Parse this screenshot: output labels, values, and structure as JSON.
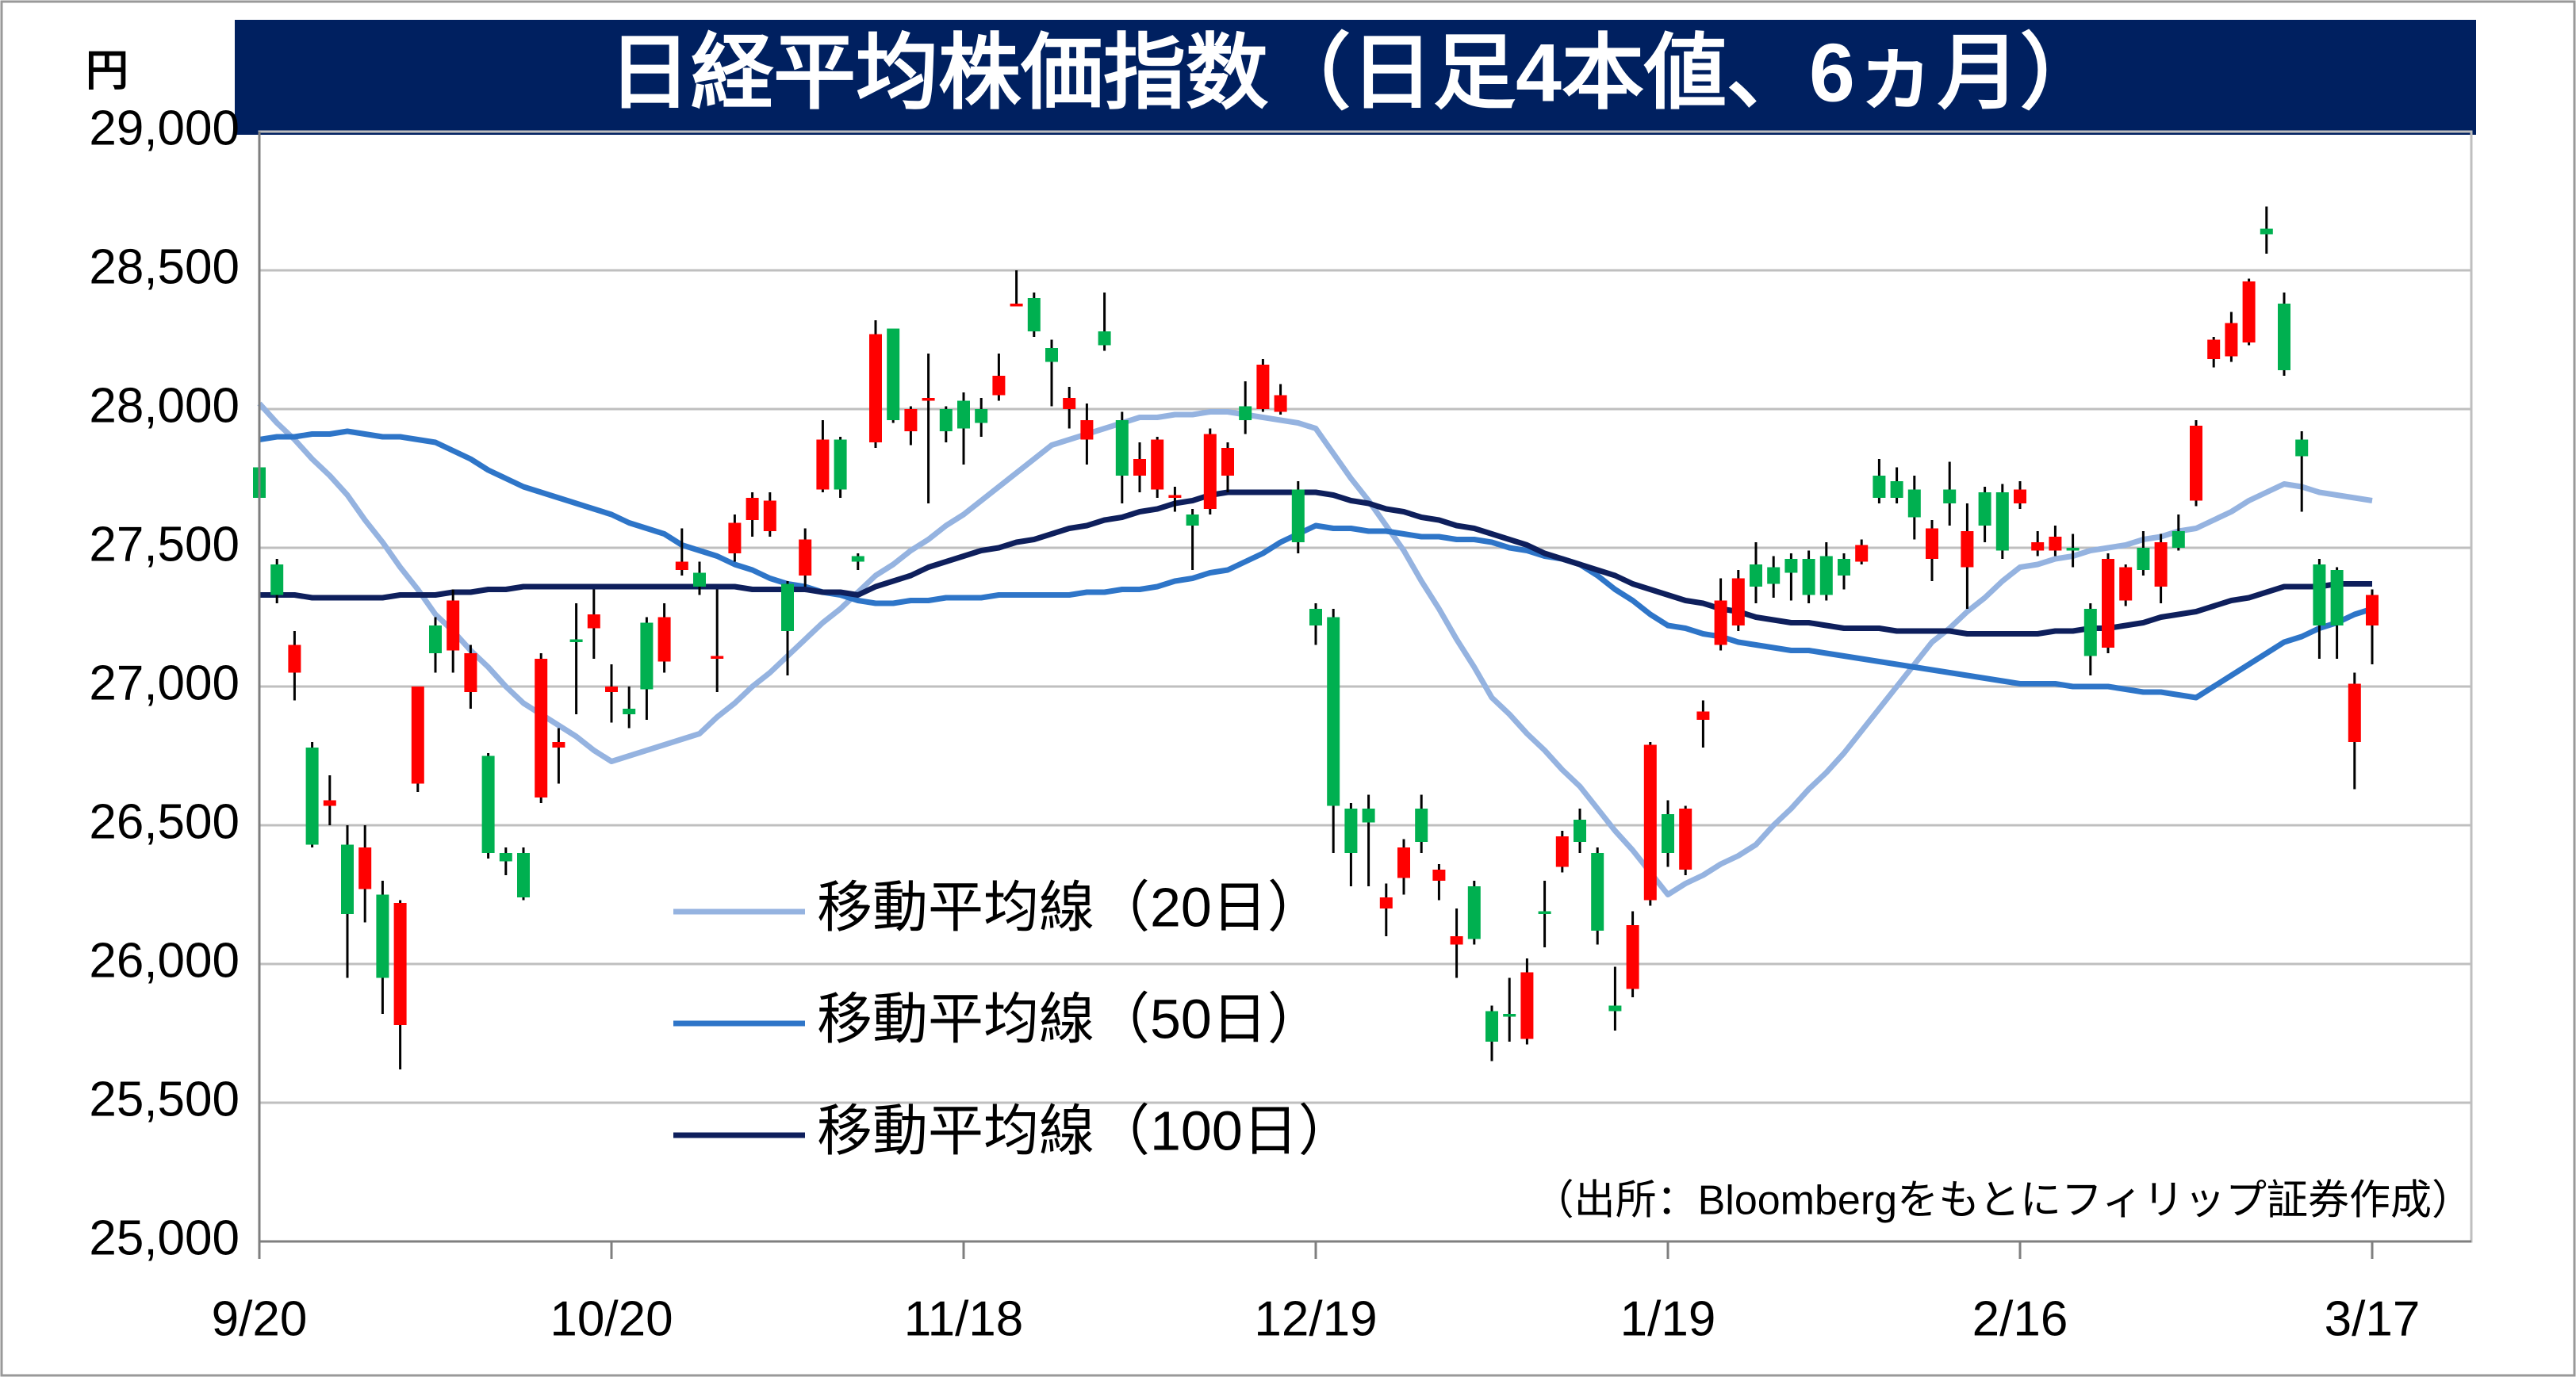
{
  "chart_data": {
    "type": "candlestick",
    "title": "日経平均株価指数（日足4本値、6ヵ月）",
    "y_unit": "円",
    "source": "（出所：Bloombergをもとにフィリップ証券作成）",
    "ylim": [
      25000,
      29000
    ],
    "yticks": [
      {
        "value": 25000,
        "label": "25,000"
      },
      {
        "value": 25500,
        "label": "25,500"
      },
      {
        "value": 26000,
        "label": "26,000"
      },
      {
        "value": 26500,
        "label": "26,500"
      },
      {
        "value": 27000,
        "label": "27,000"
      },
      {
        "value": 27500,
        "label": "27,500"
      },
      {
        "value": 28000,
        "label": "28,000"
      },
      {
        "value": 28500,
        "label": "28,500"
      },
      {
        "value": 29000,
        "label": "29,000"
      }
    ],
    "grid": true,
    "up_color": "#ff0000",
    "down_color": "#00b050",
    "categories": [
      "9/20",
      null,
      null,
      null,
      null,
      null,
      null,
      null,
      null,
      null,
      null,
      null,
      null,
      null,
      null,
      null,
      null,
      null,
      null,
      null,
      "10/20",
      null,
      null,
      null,
      null,
      null,
      null,
      null,
      null,
      null,
      null,
      null,
      null,
      null,
      null,
      null,
      null,
      null,
      null,
      null,
      "11/18",
      null,
      null,
      null,
      null,
      null,
      null,
      null,
      null,
      null,
      null,
      null,
      null,
      null,
      null,
      null,
      null,
      null,
      null,
      null,
      "12/19",
      null,
      null,
      null,
      null,
      null,
      null,
      null,
      null,
      null,
      null,
      null,
      null,
      null,
      null,
      null,
      null,
      null,
      null,
      null,
      "1/19",
      null,
      null,
      null,
      null,
      null,
      null,
      null,
      null,
      null,
      null,
      null,
      null,
      null,
      null,
      null,
      null,
      null,
      null,
      null,
      "2/16",
      null,
      null,
      null,
      null,
      null,
      null,
      null,
      null,
      null,
      null,
      null,
      null,
      null,
      null,
      null,
      null,
      null,
      null,
      null,
      "3/17"
    ],
    "open": [
      27790,
      27440,
      27050,
      26780,
      26570,
      26430,
      26270,
      26250,
      25780,
      26650,
      27220,
      27130,
      26980,
      26750,
      26400,
      26400,
      26600,
      26780,
      27170,
      27210,
      26980,
      26920,
      27230,
      27090,
      27420,
      27410,
      27100,
      27480,
      27600,
      27560,
      27370,
      27400,
      27710,
      27890,
      27470,
      27880,
      28290,
      27920,
      28030,
      28000,
      28030,
      28000,
      28050,
      28370,
      28400,
      28220,
      28000,
      27890,
      28280,
      27960,
      27760,
      27710,
      27680,
      27620,
      27640,
      27760,
      28010,
      28000,
      27990,
      27710,
      27280,
      27250,
      26560,
      26560,
      26200,
      26310,
      26560,
      26300,
      26070,
      26280,
      25830,
      25820,
      25730,
      26190,
      26350,
      26520,
      26400,
      25850,
      25910,
      26230,
      26540,
      26340,
      26880,
      27150,
      27220,
      27440,
      27430,
      27460,
      27460,
      27470,
      27460,
      27450,
      27760,
      27740,
      27710,
      27460,
      27710,
      27430,
      27700,
      27700,
      27660,
      27490,
      27490,
      27500,
      27280,
      27140,
      27310,
      27500,
      27360,
      27560,
      27670,
      28180,
      28190,
      28240,
      28650,
      28380,
      27890,
      27440,
      27420,
      26800,
      27220
    ],
    "high": [
      27800,
      27460,
      27200,
      26800,
      26680,
      26500,
      26500,
      26300,
      26230,
      27000,
      27250,
      27350,
      27150,
      26760,
      26420,
      26420,
      27120,
      26850,
      27300,
      27350,
      27080,
      27000,
      27250,
      27300,
      27570,
      27450,
      27350,
      27620,
      27700,
      27700,
      27380,
      27570,
      27960,
      27900,
      27480,
      28320,
      28290,
      28010,
      28200,
      28010,
      28060,
      28040,
      28200,
      28500,
      28420,
      28250,
      28080,
      28020,
      28420,
      27990,
      27880,
      27900,
      27720,
      27640,
      27930,
      27880,
      28100,
      28180,
      28090,
      27740,
      27300,
      27280,
      26580,
      26610,
      26290,
      26450,
      26610,
      26360,
      26200,
      26300,
      25850,
      25950,
      26020,
      26300,
      26480,
      26560,
      26420,
      25990,
      26190,
      26800,
      26590,
      26570,
      26950,
      27390,
      27420,
      27520,
      27470,
      27480,
      27490,
      27520,
      27480,
      27530,
      27820,
      27790,
      27760,
      27600,
      27810,
      27660,
      27720,
      27730,
      27740,
      27560,
      27580,
      27550,
      27300,
      27480,
      27440,
      27560,
      27550,
      27620,
      27960,
      28260,
      28350,
      28470,
      28730,
      28420,
      27920,
      27460,
      27430,
      27050,
      27350
    ],
    "low": [
      27620,
      27300,
      26950,
      26420,
      26500,
      25950,
      26150,
      25820,
      25620,
      26620,
      27050,
      27050,
      26920,
      26380,
      26320,
      26230,
      26580,
      26650,
      26900,
      27100,
      26870,
      26850,
      26880,
      27050,
      27400,
      27330,
      26980,
      27450,
      27540,
      27540,
      27040,
      27360,
      27700,
      27680,
      27420,
      27860,
      27950,
      27870,
      27660,
      27880,
      27800,
      27900,
      28030,
      28370,
      28260,
      28010,
      27930,
      27800,
      28210,
      27660,
      27700,
      27680,
      27630,
      27420,
      27620,
      27700,
      27910,
      27990,
      27980,
      27480,
      27150,
      26400,
      26280,
      26280,
      26100,
      26250,
      26400,
      26230,
      25950,
      26070,
      25650,
      25720,
      25710,
      26060,
      26330,
      26400,
      26070,
      25760,
      25880,
      26210,
      26350,
      26320,
      26780,
      27130,
      27200,
      27300,
      27320,
      27310,
      27300,
      27310,
      27350,
      27440,
      27660,
      27660,
      27530,
      27380,
      27580,
      27280,
      27520,
      27460,
      27640,
      27470,
      27470,
      27430,
      27040,
      27120,
      27290,
      27400,
      27300,
      27490,
      27650,
      28150,
      28170,
      28230,
      28560,
      28120,
      27630,
      27100,
      27100,
      26630,
      27080
    ],
    "close": [
      27680,
      27330,
      27150,
      26430,
      26590,
      26180,
      26420,
      25950,
      26220,
      27000,
      27120,
      27310,
      27120,
      26400,
      26370,
      26240,
      27100,
      26800,
      27160,
      27260,
      27000,
      26900,
      26990,
      27250,
      27450,
      27360,
      27110,
      27590,
      27680,
      27670,
      27200,
      27530,
      27890,
      27710,
      27450,
      28270,
      27960,
      28000,
      28040,
      27920,
      27930,
      27950,
      28120,
      28380,
      28280,
      28170,
      28040,
      27960,
      28230,
      27760,
      27820,
      27890,
      27690,
      27580,
      27910,
      27860,
      27960,
      28160,
      28050,
      27520,
      27220,
      26570,
      26400,
      26510,
      26240,
      26420,
      26440,
      26340,
      26100,
      26090,
      25720,
      25810,
      25970,
      26180,
      26460,
      26440,
      26120,
      25830,
      26140,
      26790,
      26400,
      26560,
      26910,
      27310,
      27390,
      27360,
      27370,
      27410,
      27330,
      27330,
      27400,
      27510,
      27680,
      27680,
      27610,
      27570,
      27660,
      27560,
      27580,
      27490,
      27710,
      27520,
      27540,
      27490,
      27110,
      27460,
      27430,
      27420,
      27520,
      27500,
      27940,
      28250,
      28310,
      28460,
      28630,
      28140,
      27830,
      27220,
      27220,
      27010,
      27330
    ],
    "series": [
      {
        "name": "移動平均線（20日）",
        "color": "#95b3e0",
        "values": [
          28020,
          27950,
          27890,
          27820,
          27760,
          27690,
          27600,
          27520,
          27430,
          27350,
          27260,
          27200,
          27130,
          27070,
          27000,
          26940,
          26900,
          26860,
          26820,
          26770,
          26730,
          26750,
          26770,
          26790,
          26810,
          26830,
          26890,
          26940,
          27000,
          27050,
          27110,
          27170,
          27230,
          27280,
          27340,
          27400,
          27440,
          27490,
          27530,
          27580,
          27620,
          27670,
          27720,
          27770,
          27820,
          27870,
          27890,
          27910,
          27930,
          27950,
          27970,
          27970,
          27980,
          27980,
          27990,
          27990,
          27980,
          27970,
          27960,
          27950,
          27930,
          27840,
          27750,
          27670,
          27580,
          27490,
          27380,
          27280,
          27170,
          27070,
          26960,
          26900,
          26830,
          26770,
          26700,
          26640,
          26560,
          26480,
          26410,
          26330,
          26250,
          26290,
          26320,
          26360,
          26390,
          26430,
          26500,
          26560,
          26630,
          26690,
          26760,
          26840,
          26920,
          27000,
          27080,
          27160,
          27210,
          27270,
          27320,
          27380,
          27430,
          27440,
          27460,
          27470,
          27490,
          27500,
          27510,
          27530,
          27540,
          27560,
          27570,
          27600,
          27630,
          27670,
          27700,
          27730,
          27720,
          27700,
          27690,
          27680,
          27670
        ]
      },
      {
        "name": "移動平均線（50日）",
        "color": "#2e75c8",
        "values": [
          27890,
          27900,
          27900,
          27910,
          27910,
          27920,
          27910,
          27900,
          27900,
          27890,
          27880,
          27850,
          27820,
          27780,
          27750,
          27720,
          27700,
          27680,
          27660,
          27640,
          27620,
          27590,
          27570,
          27550,
          27510,
          27490,
          27470,
          27440,
          27420,
          27390,
          27370,
          27360,
          27340,
          27330,
          27310,
          27300,
          27300,
          27310,
          27310,
          27320,
          27320,
          27320,
          27330,
          27330,
          27330,
          27330,
          27330,
          27340,
          27340,
          27350,
          27350,
          27360,
          27380,
          27390,
          27410,
          27420,
          27450,
          27480,
          27520,
          27550,
          27580,
          27570,
          27570,
          27560,
          27560,
          27550,
          27540,
          27540,
          27530,
          27530,
          27520,
          27500,
          27490,
          27470,
          27460,
          27440,
          27400,
          27350,
          27310,
          27260,
          27220,
          27210,
          27190,
          27180,
          27160,
          27150,
          27140,
          27130,
          27130,
          27120,
          27110,
          27100,
          27090,
          27080,
          27070,
          27060,
          27050,
          27040,
          27030,
          27020,
          27010,
          27010,
          27010,
          27000,
          27000,
          27000,
          26990,
          26980,
          26980,
          26970,
          26960,
          27000,
          27040,
          27080,
          27120,
          27160,
          27180,
          27210,
          27230,
          27260,
          27280
        ]
      },
      {
        "name": "移動平均線（100日）",
        "color": "#0e1f5c",
        "values": [
          27330,
          27330,
          27330,
          27320,
          27320,
          27320,
          27320,
          27320,
          27330,
          27330,
          27330,
          27340,
          27340,
          27350,
          27350,
          27360,
          27360,
          27360,
          27360,
          27360,
          27360,
          27360,
          27360,
          27360,
          27360,
          27360,
          27360,
          27360,
          27350,
          27350,
          27350,
          27350,
          27340,
          27340,
          27330,
          27360,
          27380,
          27400,
          27430,
          27450,
          27470,
          27490,
          27500,
          27520,
          27530,
          27550,
          27570,
          27580,
          27600,
          27610,
          27630,
          27640,
          27660,
          27670,
          27690,
          27700,
          27700,
          27700,
          27700,
          27700,
          27700,
          27690,
          27670,
          27660,
          27640,
          27630,
          27610,
          27600,
          27580,
          27570,
          27550,
          27530,
          27510,
          27480,
          27460,
          27440,
          27420,
          27400,
          27370,
          27350,
          27330,
          27310,
          27300,
          27280,
          27270,
          27250,
          27240,
          27230,
          27230,
          27220,
          27210,
          27210,
          27210,
          27200,
          27200,
          27200,
          27200,
          27190,
          27190,
          27190,
          27190,
          27190,
          27200,
          27200,
          27210,
          27210,
          27220,
          27230,
          27250,
          27260,
          27270,
          27290,
          27310,
          27320,
          27340,
          27360,
          27360,
          27360,
          27370,
          27370,
          27370
        ]
      }
    ]
  }
}
